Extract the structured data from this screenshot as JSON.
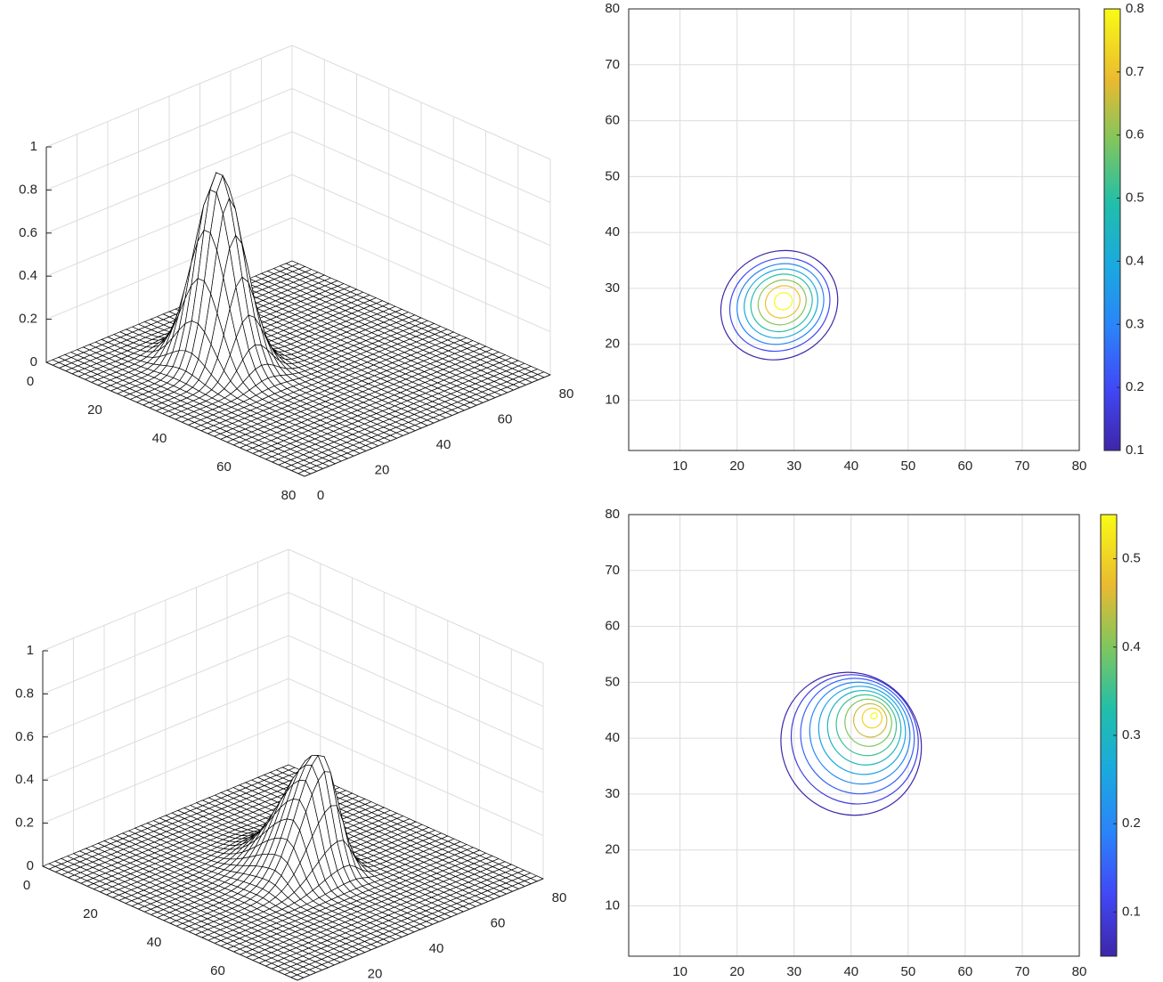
{
  "chart_data": [
    {
      "type": "surface",
      "panel": "top-left",
      "peak": 0.9,
      "peak_location": [
        27,
        28
      ],
      "spread": [
        6,
        5
      ],
      "ticks": {
        "x": [
          "0",
          "20",
          "40",
          "60",
          "80"
        ],
        "y": [
          "0",
          "20",
          "40",
          "60",
          "80"
        ],
        "z": [
          "0",
          "0.2",
          "0.4",
          "0.6",
          "0.8",
          "1"
        ]
      },
      "xlim": [
        0,
        80
      ],
      "ylim": [
        0,
        80
      ],
      "zlim": [
        0,
        1
      ],
      "grid": true,
      "mesh_color": "#000000",
      "face_color": "#ffffff"
    },
    {
      "type": "contour",
      "panel": "top-right",
      "center": [
        28,
        28
      ],
      "levels": [
        0.1,
        0.2,
        0.3,
        0.4,
        0.5,
        0.6,
        0.7,
        0.8
      ],
      "level_radii": [
        [
          10.5,
          9.5
        ],
        [
          9.0,
          8.1
        ],
        [
          7.8,
          7.0
        ],
        [
          6.6,
          6.0
        ],
        [
          5.5,
          5.0
        ],
        [
          4.3,
          3.9
        ],
        [
          3.1,
          2.8
        ],
        [
          1.6,
          1.5
        ]
      ],
      "xlim": [
        1,
        80
      ],
      "ylim": [
        1,
        80
      ],
      "ticks": {
        "x": [
          "10",
          "20",
          "30",
          "40",
          "50",
          "60",
          "70",
          "80"
        ],
        "y": [
          "10",
          "20",
          "30",
          "40",
          "50",
          "60",
          "70",
          "80"
        ]
      },
      "colorbar": {
        "min": 0.1,
        "max": 0.8,
        "ticks": [
          "0.1",
          "0.2",
          "0.3",
          "0.4",
          "0.5",
          "0.6",
          "0.7",
          "0.8"
        ],
        "colormap": "parula"
      },
      "grid": true
    },
    {
      "type": "surface",
      "panel": "bottom-left",
      "peak": 0.55,
      "peak_location": [
        44,
        45
      ],
      "spread": [
        9,
        8
      ],
      "skew": true,
      "ticks": {
        "x": [
          "0",
          "20",
          "40",
          "60",
          "80"
        ],
        "y": [
          "0",
          "20",
          "40",
          "60",
          "80"
        ],
        "z": [
          "0",
          "0.2",
          "0.4",
          "0.6",
          "0.8",
          "1"
        ]
      },
      "xlim": [
        0,
        80
      ],
      "ylim": [
        0,
        80
      ],
      "zlim": [
        0,
        1
      ],
      "grid": true,
      "mesh_color": "#000000",
      "face_color": "#ffffff"
    },
    {
      "type": "contour",
      "panel": "bottom-right",
      "peak_location": [
        44,
        44
      ],
      "levels": [
        0.05,
        0.1,
        0.15,
        0.2,
        0.25,
        0.3,
        0.35,
        0.4,
        0.45,
        0.5,
        0.55
      ],
      "outer_center": [
        40,
        39
      ],
      "outer_radii": [
        11.5,
        12.5
      ],
      "xlim": [
        1,
        80
      ],
      "ylim": [
        1,
        80
      ],
      "ticks": {
        "x": [
          "10",
          "20",
          "30",
          "40",
          "50",
          "60",
          "70",
          "80"
        ],
        "y": [
          "10",
          "20",
          "30",
          "40",
          "50",
          "60",
          "70",
          "80"
        ]
      },
      "colorbar": {
        "min": 0.05,
        "max": 0.55,
        "ticks": [
          "0.1",
          "0.2",
          "0.3",
          "0.4",
          "0.5"
        ],
        "tick_values": [
          0.1,
          0.2,
          0.3,
          0.4,
          0.5
        ],
        "colormap": "parula"
      },
      "grid": true
    }
  ],
  "colors": {
    "axis": "#262626",
    "grid": "#dcdcdc",
    "background": "#ffffff"
  }
}
